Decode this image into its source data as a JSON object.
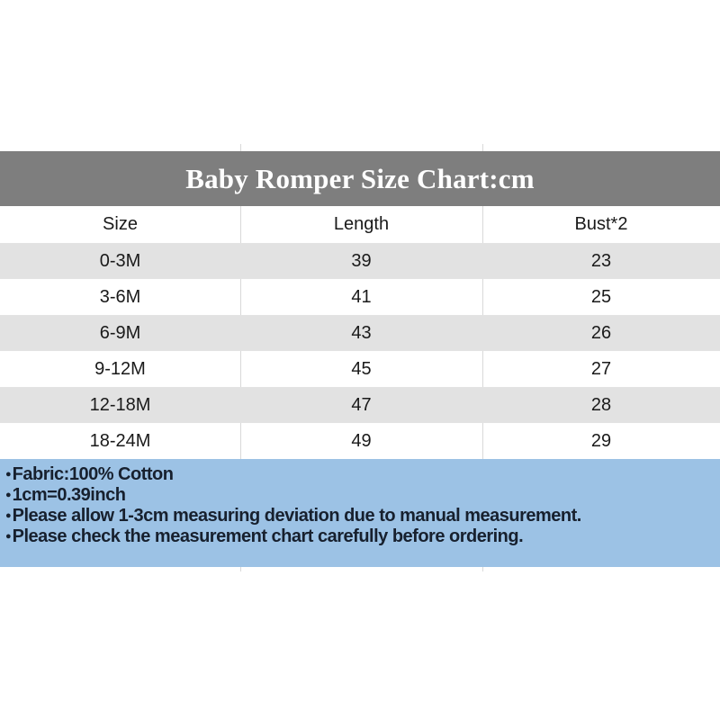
{
  "title": "Baby Romper Size Chart:cm",
  "colors": {
    "title_bar_bg": "#7e7e7e",
    "title_text": "#ffffff",
    "row_alt_bg": "#e2e2e2",
    "row_bg": "#ffffff",
    "footer_bg": "#9cc2e5",
    "gridline": "#d9d9d9",
    "body_text": "#1a1a1a"
  },
  "table": {
    "headers": [
      "Size",
      "Length",
      "Bust*2"
    ],
    "rows": [
      {
        "size": "0-3M",
        "length": "39",
        "bust": "23"
      },
      {
        "size": "3-6M",
        "length": "41",
        "bust": "25"
      },
      {
        "size": "6-9M",
        "length": "43",
        "bust": "26"
      },
      {
        "size": "9-12M",
        "length": "45",
        "bust": "27"
      },
      {
        "size": "12-18M",
        "length": "47",
        "bust": "28"
      },
      {
        "size": "18-24M",
        "length": "49",
        "bust": "29"
      }
    ]
  },
  "footer": {
    "bullet": "●",
    "notes": [
      "Fabric:100% Cotton",
      "1cm=0.39inch",
      "Please allow 1-3cm measuring deviation due to manual measurement.",
      "Please check the measurement chart carefully before ordering."
    ]
  },
  "chart_data": {
    "type": "table",
    "title": "Baby Romper Size Chart:cm",
    "units": "cm",
    "columns": [
      "Size",
      "Length",
      "Bust*2"
    ],
    "rows": [
      [
        "0-3M",
        39,
        23
      ],
      [
        "3-6M",
        41,
        25
      ],
      [
        "6-9M",
        43,
        26
      ],
      [
        "9-12M",
        45,
        27
      ],
      [
        "12-18M",
        47,
        28
      ],
      [
        "18-24M",
        49,
        29
      ]
    ],
    "notes": [
      "Fabric:100% Cotton",
      "1cm=0.39inch",
      "Please allow 1-3cm measuring deviation due to manual measurement.",
      "Please check the measurement chart carefully before ordering."
    ]
  }
}
